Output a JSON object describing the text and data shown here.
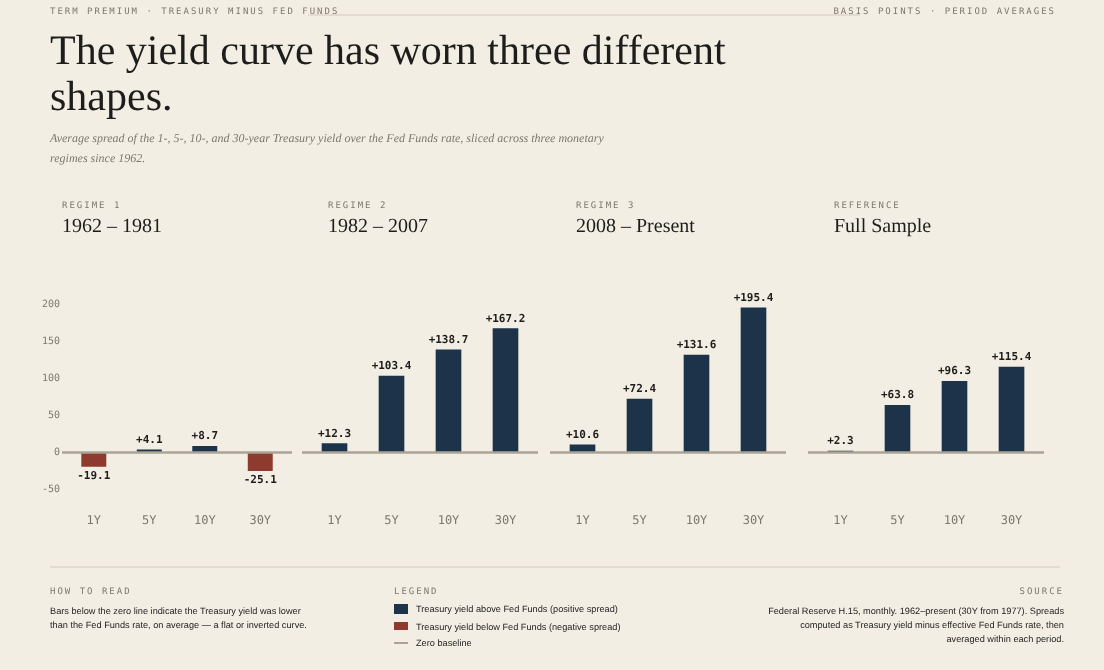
{
  "chart_data": [
    {
      "type": "other",
      "title": "The yield curve has worn three different shapes.",
      "subtitle": "Average spread of the 1-, 5-, 10-, and 30-year Treasury yield over the Fed Funds rate, sliced across three monetary regimes since 1962.",
      "annotations": [
        "TERM PREMIUM · TREASURY MINUS FED FUNDS",
        "BASIS POINTS · PERIOD AVERAGES"
      ]
    },
    {
      "type": "bar",
      "subtitle": "REGIME 1",
      "title": "1962 – 1981",
      "categories": [
        "1Y",
        "5Y",
        "10Y",
        "30Y"
      ],
      "values": [
        -19.1,
        4.1,
        8.7,
        -25.1
      ],
      "colors": [
        "#8e3a2f",
        "#1c3349",
        "#1c3349",
        "#8e3a2f"
      ],
      "value_labels": [
        "-19.1",
        "+4.1",
        "+8.7",
        "-25.1"
      ],
      "ylim": [
        -50,
        200
      ],
      "yticks": [
        -50,
        0,
        50,
        100,
        150,
        200
      ],
      "grid": false,
      "ref_lines": [
        {
          "axis": "y",
          "value": 0,
          "color": "#aaa497"
        }
      ]
    },
    {
      "type": "bar",
      "subtitle": "REGIME 2",
      "title": "1982 – 2007",
      "categories": [
        "1Y",
        "5Y",
        "10Y",
        "30Y"
      ],
      "values": [
        12.3,
        103.4,
        138.7,
        167.2
      ],
      "colors": [
        "#1c3349",
        "#1c3349",
        "#1c3349",
        "#1c3349"
      ],
      "value_labels": [
        "+12.3",
        "+103.4",
        "+138.7",
        "+167.2"
      ],
      "ylim": [
        -50,
        200
      ],
      "yticks": [
        -50,
        0,
        50,
        100,
        150,
        200
      ],
      "tick_labels": "x",
      "grid": false,
      "ref_lines": [
        {
          "axis": "y",
          "value": 0,
          "color": "#aaa497"
        }
      ]
    },
    {
      "type": "bar",
      "subtitle": "REGIME 3",
      "title": "2008 – Present",
      "categories": [
        "1Y",
        "5Y",
        "10Y",
        "30Y"
      ],
      "values": [
        10.6,
        72.4,
        131.6,
        195.4
      ],
      "colors": [
        "#1c3349",
        "#1c3349",
        "#1c3349",
        "#1c3349"
      ],
      "value_labels": [
        "+10.6",
        "+72.4",
        "+131.6",
        "+195.4"
      ],
      "ylim": [
        -50,
        200
      ],
      "yticks": [
        -50,
        0,
        50,
        100,
        150,
        200
      ],
      "tick_labels": "x",
      "grid": false,
      "ref_lines": [
        {
          "axis": "y",
          "value": 0,
          "color": "#aaa497"
        }
      ]
    },
    {
      "type": "bar",
      "subtitle": "REFERENCE",
      "title": "Full Sample",
      "categories": [
        "1Y",
        "5Y",
        "10Y",
        "30Y"
      ],
      "values": [
        2.3,
        63.8,
        96.3,
        115.4
      ],
      "colors": [
        "#1c3349",
        "#1c3349",
        "#1c3349",
        "#1c3349"
      ],
      "value_labels": [
        "+2.3",
        "+63.8",
        "+96.3",
        "+115.4"
      ],
      "ylim": [
        -50,
        200
      ],
      "yticks": [
        -50,
        0,
        50,
        100,
        150,
        200
      ],
      "tick_labels": "x",
      "grid": false,
      "ref_lines": [
        {
          "axis": "y",
          "value": 0,
          "color": "#aaa497"
        }
      ]
    },
    {
      "type": "other",
      "colors": [
        "#1c3349",
        "#8e3a2f",
        "#aaa497"
      ],
      "annotations": [
        "HOW TO READ",
        "Bars below the zero line indicate the Treasury yield was lower than the Fed Funds rate, on average — a flat or inverted curve.",
        "LEGEND",
        "Treasury yield above Fed Funds (positive spread)",
        "Treasury yield below Fed Funds (negative spread)",
        "Zero baseline",
        "SOURCE",
        "Federal Reserve H.15, monthly. 1962–present (30Y from 1977). Spreads computed as Treasury yield minus effective Fed Funds rate, then averaged within each period."
      ]
    }
  ]
}
